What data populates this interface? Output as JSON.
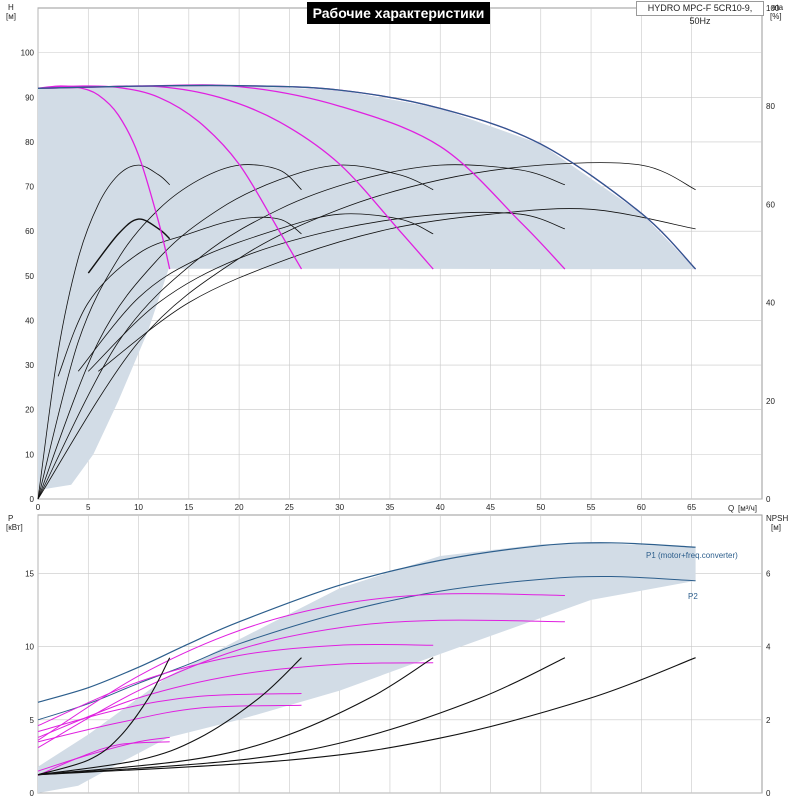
{
  "title": "Рабочие характеристики",
  "subtitle": "HYDRO MPC-F 5CR10-9, 50Hz",
  "colors": {
    "head_curve": "#e020e0",
    "eta_curve": "#111111",
    "envelope": "#2c5e8c",
    "area_fill": "#d2dce6",
    "power_curve": "#e020e0",
    "npsh_curve": "#111111",
    "grid": "#c8c8c8"
  },
  "chart_data": [
    {
      "type": "line",
      "name": "head-eta",
      "ylabel": "H",
      "yunit": "[м]",
      "y2label": "eta",
      "y2unit": "[%]",
      "xlabel": "Q",
      "xunit": "[м³/ч]",
      "xlim": [
        0,
        72
      ],
      "ylim": [
        0,
        110
      ],
      "y2lim": [
        0,
        100
      ],
      "xticks": [
        0,
        5,
        10,
        15,
        20,
        25,
        30,
        35,
        40,
        45,
        50,
        55,
        60,
        65
      ],
      "yticks": [
        0,
        10,
        20,
        30,
        40,
        50,
        60,
        70,
        80,
        90,
        100
      ],
      "y2ticks": [
        0,
        20,
        40,
        60,
        80,
        100
      ],
      "grid": true,
      "area_region": {
        "upper": [
          [
            0,
            92
          ],
          [
            5,
            92.3
          ],
          [
            10,
            92.5
          ],
          [
            20,
            92.6
          ],
          [
            30,
            91.6
          ],
          [
            40,
            87.5
          ],
          [
            50,
            79.5
          ],
          [
            60,
            64
          ],
          [
            65.4,
            51.5
          ]
        ],
        "lower": [
          [
            65.4,
            51.5
          ],
          [
            50,
            51.5
          ],
          [
            30,
            51.6
          ],
          [
            13,
            51.6
          ],
          [
            11,
            38
          ],
          [
            8,
            22
          ],
          [
            5.5,
            10
          ],
          [
            3.3,
            3.2
          ],
          [
            0,
            2
          ]
        ]
      },
      "head_series": [
        {
          "values": [
            [
              0,
              92
            ],
            [
              2,
              92.5
            ],
            [
              4,
              92.2
            ],
            [
              6,
              90.5
            ],
            [
              8,
              86
            ],
            [
              10,
              77
            ],
            [
              12,
              62
            ],
            [
              13.1,
              51.5
            ]
          ]
        },
        {
          "values": [
            [
              0,
              92
            ],
            [
              4,
              92.5
            ],
            [
              8,
              92.2
            ],
            [
              12,
              90
            ],
            [
              16,
              84.5
            ],
            [
              20,
              75
            ],
            [
              24,
              60
            ],
            [
              26.2,
              51.5
            ]
          ]
        },
        {
          "values": [
            [
              0,
              92
            ],
            [
              6,
              92.3
            ],
            [
              12,
              92.4
            ],
            [
              18,
              90
            ],
            [
              24,
              84.5
            ],
            [
              30,
              75
            ],
            [
              36,
              60
            ],
            [
              39.3,
              51.5
            ]
          ]
        },
        {
          "values": [
            [
              0,
              92
            ],
            [
              10,
              92.5
            ],
            [
              20,
              92.4
            ],
            [
              30,
              88
            ],
            [
              40,
              79
            ],
            [
              48,
              62
            ],
            [
              52.4,
              51.5
            ]
          ]
        },
        {
          "values": [
            [
              0,
              92
            ],
            [
              10,
              92.5
            ],
            [
              20,
              92.6
            ],
            [
              30,
              91.6
            ],
            [
              40,
              87.5
            ],
            [
              50,
              79.5
            ],
            [
              60,
              64
            ],
            [
              65.4,
              51.5
            ]
          ]
        }
      ],
      "eta_series": [
        {
          "values": [
            [
              0,
              0
            ],
            [
              2,
              30
            ],
            [
              4,
              49
            ],
            [
              6,
              60
            ],
            [
              8,
              66
            ],
            [
              10,
              68
            ],
            [
              12,
              66
            ],
            [
              13.1,
              64
            ]
          ]
        },
        {
          "values": [
            [
              5,
              46
            ],
            [
              8,
              54
            ],
            [
              10,
              57
            ],
            [
              12,
              55
            ],
            [
              13.1,
              53
            ]
          ]
        },
        {
          "values": [
            [
              0,
              0
            ],
            [
              4,
              32
            ],
            [
              8,
              49
            ],
            [
              12,
              59
            ],
            [
              16,
              65
            ],
            [
              20,
              68
            ],
            [
              24,
              67
            ],
            [
              26.2,
              63
            ]
          ]
        },
        {
          "values": [
            [
              0,
              0
            ],
            [
              6,
              32
            ],
            [
              12,
              49
            ],
            [
              18,
              59
            ],
            [
              24,
              65
            ],
            [
              30,
              68
            ],
            [
              36,
              66
            ],
            [
              39.3,
              63
            ]
          ]
        },
        {
          "values": [
            [
              0,
              0
            ],
            [
              8,
              32
            ],
            [
              16,
              49
            ],
            [
              24,
              59
            ],
            [
              32,
              65
            ],
            [
              40,
              68
            ],
            [
              48,
              67
            ],
            [
              52.4,
              64
            ]
          ]
        },
        {
          "values": [
            [
              0,
              0
            ],
            [
              10,
              32
            ],
            [
              20,
              49
            ],
            [
              30,
              59
            ],
            [
              40,
              65
            ],
            [
              50,
              68
            ],
            [
              60,
              68
            ],
            [
              65.4,
              63
            ]
          ]
        },
        {
          "values": [
            [
              2,
              25
            ],
            [
              5,
              40
            ],
            [
              10,
              50
            ],
            [
              15,
              54
            ],
            [
              20,
              57
            ],
            [
              24,
              57
            ],
            [
              26.2,
              54
            ]
          ]
        },
        {
          "values": [
            [
              4,
              26
            ],
            [
              10,
              41
            ],
            [
              16,
              49
            ],
            [
              24,
              55
            ],
            [
              30,
              58
            ],
            [
              36,
              57
            ],
            [
              39.3,
              54
            ]
          ]
        },
        {
          "values": [
            [
              5,
              26
            ],
            [
              12,
              40
            ],
            [
              20,
              49
            ],
            [
              30,
              55
            ],
            [
              40,
              58
            ],
            [
              48,
              58
            ],
            [
              52.4,
              55
            ]
          ]
        },
        {
          "values": [
            [
              6,
              26
            ],
            [
              15,
              40
            ],
            [
              25,
              49
            ],
            [
              35,
              55
            ],
            [
              45,
              58
            ],
            [
              55,
              59
            ],
            [
              65.4,
              55
            ]
          ]
        }
      ]
    },
    {
      "type": "line",
      "name": "power-npsh",
      "ylabel": "P",
      "yunit": "[кВт]",
      "y2label": "NPSH",
      "y2unit": "[м]",
      "xlim": [
        0,
        72
      ],
      "ylim": [
        0,
        19
      ],
      "y2lim": [
        0,
        7.6
      ],
      "xticks": [
        0,
        5,
        10,
        15,
        20,
        25,
        30,
        35,
        40,
        45,
        50,
        55,
        60,
        65
      ],
      "yticks": [
        0,
        5,
        10,
        15
      ],
      "y2ticks": [
        0,
        2,
        4,
        6
      ],
      "grid": true,
      "series_labels": [
        "P1 (motor+freq.converter)",
        "P2"
      ],
      "area_region": {
        "upper": [
          [
            0,
            1.8
          ],
          [
            5,
            4
          ],
          [
            13,
            8
          ],
          [
            20,
            10.5
          ],
          [
            30,
            14
          ],
          [
            40,
            16.2
          ],
          [
            50,
            17
          ],
          [
            55,
            17.1
          ],
          [
            65.4,
            16.8
          ]
        ],
        "lower": [
          [
            65.4,
            14.5
          ],
          [
            55,
            13.2
          ],
          [
            40,
            9.5
          ],
          [
            30,
            7
          ],
          [
            20,
            5
          ],
          [
            13,
            3.8
          ],
          [
            8,
            2
          ],
          [
            4,
            0.5
          ],
          [
            0,
            0
          ]
        ]
      },
      "p1_curve": {
        "values": [
          [
            0,
            6.2
          ],
          [
            5,
            7.2
          ],
          [
            10,
            8.6
          ],
          [
            15,
            10.2
          ],
          [
            20,
            11.7
          ],
          [
            30,
            14.2
          ],
          [
            40,
            15.9
          ],
          [
            50,
            16.9
          ],
          [
            57,
            17.1
          ],
          [
            65.4,
            16.8
          ]
        ]
      },
      "p2_curve": {
        "values": [
          [
            0,
            5
          ],
          [
            5,
            6.1
          ],
          [
            10,
            7.5
          ],
          [
            15,
            8.8
          ],
          [
            20,
            10.2
          ],
          [
            30,
            12.3
          ],
          [
            40,
            13.8
          ],
          [
            50,
            14.6
          ],
          [
            57,
            14.8
          ],
          [
            65.4,
            14.5
          ]
        ]
      },
      "power_series": [
        {
          "values": [
            [
              0,
              1.2
            ],
            [
              4,
              2.4
            ],
            [
              8,
              3.3
            ],
            [
              13.1,
              3.5
            ]
          ]
        },
        {
          "values": [
            [
              0,
              1.5
            ],
            [
              5,
              2.6
            ],
            [
              10,
              3.5
            ],
            [
              13.1,
              3.8
            ]
          ]
        },
        {
          "values": [
            [
              0,
              3.5
            ],
            [
              8,
              4.8
            ],
            [
              16,
              5.8
            ],
            [
              26.2,
              6
            ]
          ]
        },
        {
          "values": [
            [
              0,
              4.2
            ],
            [
              8,
              5.7
            ],
            [
              16,
              6.6
            ],
            [
              26.2,
              6.8
            ]
          ]
        },
        {
          "values": [
            [
              0,
              3.8
            ],
            [
              10,
              6.5
            ],
            [
              20,
              8.1
            ],
            [
              30,
              8.8
            ],
            [
              39.3,
              8.9
            ]
          ]
        },
        {
          "values": [
            [
              0,
              4.6
            ],
            [
              10,
              7.6
            ],
            [
              20,
              9.4
            ],
            [
              30,
              10.1
            ],
            [
              39.3,
              10.1
            ]
          ]
        },
        {
          "values": [
            [
              0,
              3.1
            ],
            [
              10,
              7
            ],
            [
              20,
              9.8
            ],
            [
              30,
              11.3
            ],
            [
              40,
              11.8
            ],
            [
              52.4,
              11.7
            ]
          ]
        },
        {
          "values": [
            [
              0,
              3.6
            ],
            [
              10,
              8
            ],
            [
              20,
              11.1
            ],
            [
              30,
              12.9
            ],
            [
              40,
              13.6
            ],
            [
              52.4,
              13.5
            ]
          ]
        }
      ],
      "npsh_series": [
        {
          "values": [
            [
              0,
              0.5
            ],
            [
              5,
              0.9
            ],
            [
              8,
              1.5
            ],
            [
              11,
              2.6
            ],
            [
              13.1,
              3.7
            ]
          ]
        },
        {
          "values": [
            [
              0,
              0.5
            ],
            [
              10,
              0.9
            ],
            [
              16,
              1.5
            ],
            [
              22,
              2.6
            ],
            [
              26.2,
              3.7
            ]
          ]
        },
        {
          "values": [
            [
              0,
              0.5
            ],
            [
              15,
              0.9
            ],
            [
              24,
              1.5
            ],
            [
              33,
              2.6
            ],
            [
              39.3,
              3.7
            ]
          ]
        },
        {
          "values": [
            [
              0,
              0.5
            ],
            [
              20,
              0.9
            ],
            [
              32,
              1.5
            ],
            [
              44,
              2.6
            ],
            [
              52.4,
              3.7
            ]
          ]
        },
        {
          "values": [
            [
              0,
              0.5
            ],
            [
              25,
              0.9
            ],
            [
              40,
              1.5
            ],
            [
              55,
              2.6
            ],
            [
              65.4,
              3.7
            ]
          ]
        }
      ]
    }
  ]
}
